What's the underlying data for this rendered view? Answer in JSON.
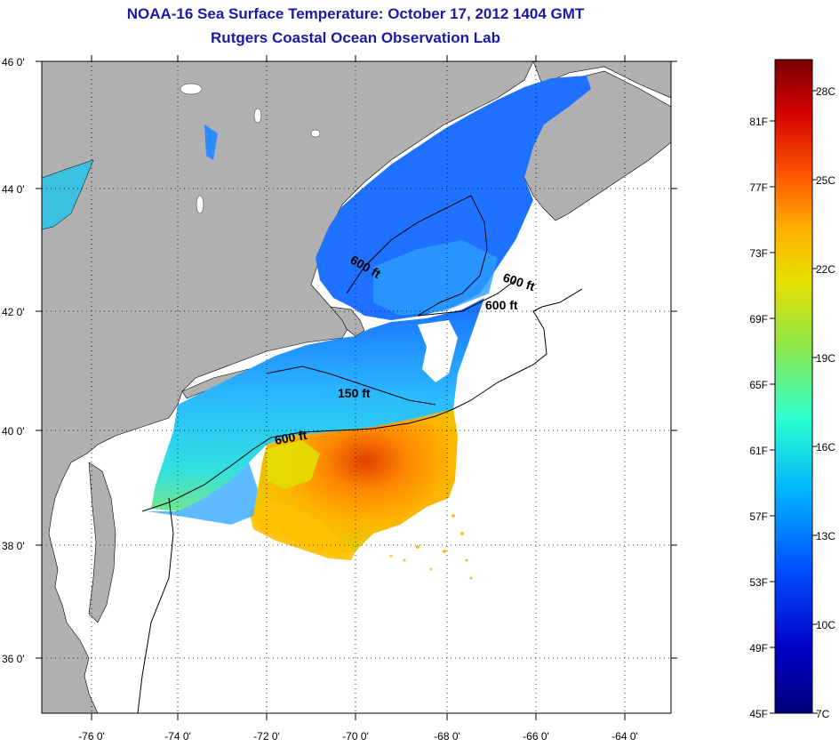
{
  "header": {
    "title": "NOAA-16 Sea Surface Temperature:  October 17, 2012 1404 GMT",
    "subtitle": "Rutgers Coastal Ocean Observation Lab"
  },
  "map": {
    "lat_ticks": [
      "36 0'",
      "38 0'",
      "40 0'",
      "42 0'",
      "44 0'",
      "46 0'"
    ],
    "lon_ticks": [
      "-76 0'",
      "-74 0'",
      "-72 0'",
      "-70 0'",
      "-68 0'",
      "-66 0'",
      "-64 0'"
    ],
    "contour_labels": [
      "600 ft",
      "600 ft",
      "600 ft",
      "150 ft",
      "600 ft"
    ],
    "land_color": "#b0b0b0",
    "ocean_color": "#ffffff"
  },
  "colorbar": {
    "f_labels": [
      "81F",
      "77F",
      "73F",
      "69F",
      "65F",
      "61F",
      "57F",
      "53F",
      "49F",
      "45F"
    ],
    "c_labels": [
      "28C",
      "25C",
      "22C",
      "19C",
      "16C",
      "13C",
      "10C",
      "7C"
    ],
    "colors": [
      "#7a0000",
      "#d40000",
      "#ff5a00",
      "#ffb000",
      "#e6e000",
      "#8ae64a",
      "#2cffd0",
      "#00b4ff",
      "#0050ff",
      "#0000c8",
      "#00007a"
    ]
  }
}
